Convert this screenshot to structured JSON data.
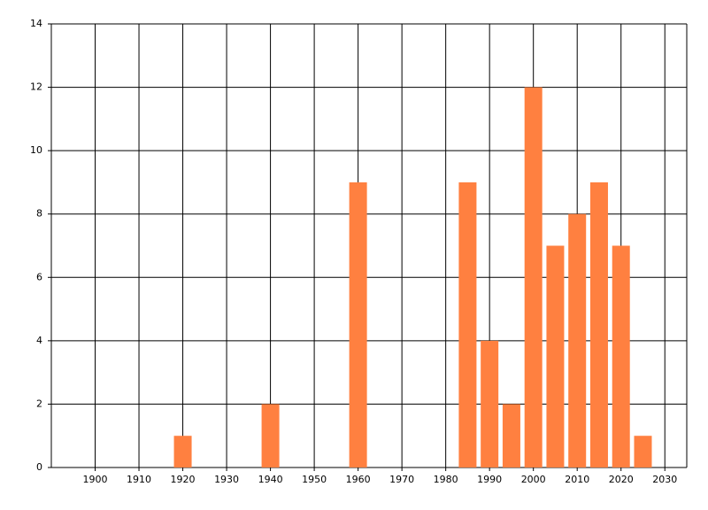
{
  "chart_data": {
    "type": "bar",
    "x": [
      1920,
      1940,
      1960,
      1985,
      1990,
      1995,
      2000,
      2005,
      2010,
      2015,
      2020,
      2025
    ],
    "values": [
      1,
      2,
      9,
      9,
      4,
      2,
      12,
      7,
      8,
      9,
      7,
      1
    ],
    "color": "#ff8040",
    "xlim": [
      1890,
      2035
    ],
    "xticks": [
      1900,
      1910,
      1920,
      1930,
      1940,
      1950,
      1960,
      1970,
      1980,
      1990,
      2000,
      2010,
      2020,
      2030
    ],
    "ylim": [
      0,
      14
    ],
    "yticks": [
      0,
      2,
      4,
      6,
      8,
      10,
      12,
      14
    ],
    "grid": true
  }
}
